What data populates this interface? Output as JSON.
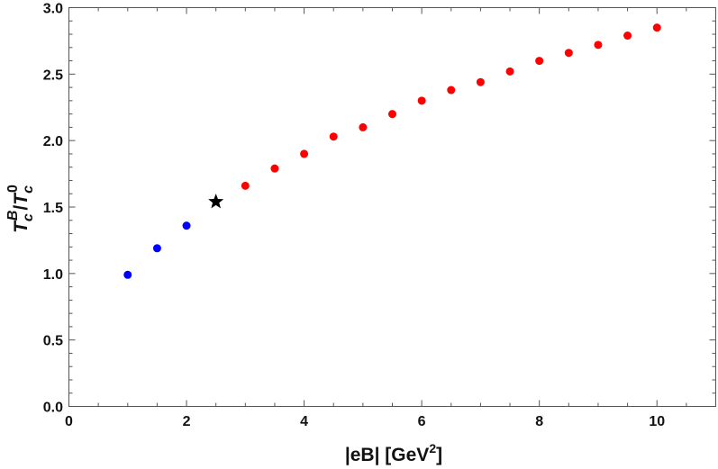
{
  "chart_data": {
    "type": "scatter",
    "title": "",
    "xlabel": "|eB| [GeV²]",
    "ylabel": "Tc^B/Tc^0",
    "xlim": [
      0,
      11
    ],
    "ylim": [
      0,
      3.0
    ],
    "x_ticks": [
      "0",
      "2",
      "4",
      "6",
      "8",
      "10"
    ],
    "y_ticks": [
      "0.0",
      "0.5",
      "1.0",
      "1.5",
      "2.0",
      "2.5",
      "3.0"
    ],
    "grid": false,
    "legend": "none",
    "series": [
      {
        "marker": "circle",
        "color": "#0000ff",
        "x": [
          1.0,
          1.5,
          2.0
        ],
        "y": [
          0.99,
          1.19,
          1.36
        ]
      },
      {
        "marker": "star",
        "color": "#000000",
        "x": [
          2.5
        ],
        "y": [
          1.54
        ]
      },
      {
        "marker": "circle",
        "color": "#ff0000",
        "x": [
          3.0,
          3.5,
          4.0,
          4.5,
          5.0,
          5.5,
          6.0,
          6.5,
          7.0,
          7.5,
          8.0,
          8.5,
          9.0,
          9.5,
          10.0
        ],
        "y": [
          1.66,
          1.79,
          1.9,
          2.03,
          2.1,
          2.2,
          2.3,
          2.38,
          2.44,
          2.52,
          2.6,
          2.66,
          2.72,
          2.79,
          2.85
        ]
      }
    ]
  }
}
